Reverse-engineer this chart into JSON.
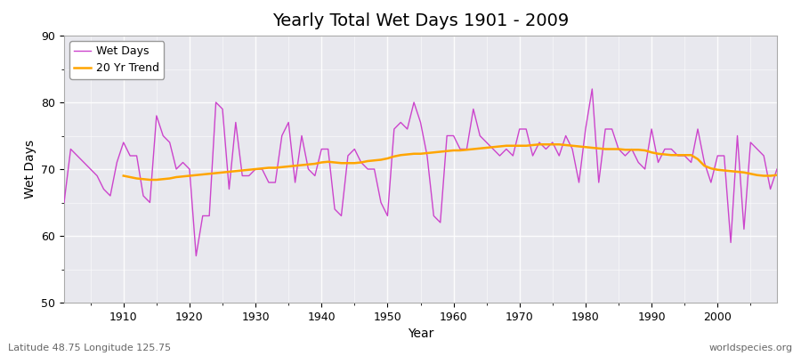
{
  "title": "Yearly Total Wet Days 1901 - 2009",
  "xlabel": "Year",
  "ylabel": "Wet Days",
  "subtitle_left": "Latitude 48.75 Longitude 125.75",
  "subtitle_right": "worldspecies.org",
  "legend_wet": "Wet Days",
  "legend_trend": "20 Yr Trend",
  "wet_color": "#CC44CC",
  "trend_color": "#FFA500",
  "bg_color": "#E8E8EE",
  "fig_bg": "#FFFFFF",
  "ylim": [
    50,
    90
  ],
  "xlim": [
    1901,
    2009
  ],
  "years": [
    1901,
    1902,
    1903,
    1904,
    1905,
    1906,
    1907,
    1908,
    1909,
    1910,
    1911,
    1912,
    1913,
    1914,
    1915,
    1916,
    1917,
    1918,
    1919,
    1920,
    1921,
    1922,
    1923,
    1924,
    1925,
    1926,
    1927,
    1928,
    1929,
    1930,
    1931,
    1932,
    1933,
    1934,
    1935,
    1936,
    1937,
    1938,
    1939,
    1940,
    1941,
    1942,
    1943,
    1944,
    1945,
    1946,
    1947,
    1948,
    1949,
    1950,
    1951,
    1952,
    1953,
    1954,
    1955,
    1956,
    1957,
    1958,
    1959,
    1960,
    1961,
    1962,
    1963,
    1964,
    1965,
    1966,
    1967,
    1968,
    1969,
    1970,
    1971,
    1972,
    1973,
    1974,
    1975,
    1976,
    1977,
    1978,
    1979,
    1980,
    1981,
    1982,
    1983,
    1984,
    1985,
    1986,
    1987,
    1988,
    1989,
    1990,
    1991,
    1992,
    1993,
    1994,
    1995,
    1996,
    1997,
    1998,
    1999,
    2000,
    2001,
    2002,
    2003,
    2004,
    2005,
    2006,
    2007,
    2008,
    2009
  ],
  "wet_days": [
    65,
    73,
    72,
    71,
    70,
    69,
    67,
    66,
    71,
    74,
    72,
    72,
    66,
    65,
    78,
    75,
    74,
    70,
    71,
    70,
    57,
    63,
    63,
    80,
    79,
    67,
    77,
    69,
    69,
    70,
    70,
    68,
    68,
    75,
    77,
    68,
    75,
    70,
    69,
    73,
    73,
    64,
    63,
    72,
    73,
    71,
    70,
    70,
    65,
    63,
    76,
    77,
    76,
    80,
    77,
    72,
    63,
    62,
    75,
    75,
    73,
    73,
    79,
    75,
    74,
    73,
    72,
    73,
    72,
    76,
    76,
    72,
    74,
    73,
    74,
    72,
    75,
    73,
    68,
    76,
    82,
    68,
    76,
    76,
    73,
    72,
    73,
    71,
    70,
    76,
    71,
    73,
    73,
    72,
    72,
    71,
    76,
    71,
    68,
    72,
    72,
    59,
    75,
    61,
    74,
    73,
    72,
    67,
    70
  ],
  "trend_start": 1910,
  "trend_values": [
    69.0,
    68.8,
    68.6,
    68.5,
    68.4,
    68.4,
    68.5,
    68.6,
    68.8,
    68.9,
    69.0,
    69.1,
    69.2,
    69.3,
    69.4,
    69.5,
    69.6,
    69.7,
    69.8,
    69.9,
    70.0,
    70.1,
    70.2,
    70.2,
    70.3,
    70.4,
    70.5,
    70.6,
    70.7,
    70.8,
    71.0,
    71.1,
    71.0,
    70.9,
    70.9,
    70.9,
    71.0,
    71.2,
    71.3,
    71.4,
    71.6,
    71.9,
    72.1,
    72.2,
    72.3,
    72.3,
    72.4,
    72.5,
    72.6,
    72.7,
    72.8,
    72.8,
    72.9,
    73.0,
    73.1,
    73.2,
    73.3,
    73.4,
    73.5,
    73.5,
    73.5,
    73.5,
    73.6,
    73.7,
    73.7,
    73.7,
    73.7,
    73.6,
    73.5,
    73.4,
    73.3,
    73.2,
    73.1,
    73.0,
    73.0,
    73.0,
    72.9,
    72.9,
    72.9,
    72.8,
    72.5,
    72.3,
    72.2,
    72.1,
    72.1,
    72.1,
    72.1,
    71.5,
    70.5,
    70.1,
    69.9,
    69.8,
    69.7,
    69.6,
    69.5,
    69.3,
    69.1,
    69.0,
    69.0,
    69.1
  ],
  "xticks": [
    1910,
    1920,
    1930,
    1940,
    1950,
    1960,
    1970,
    1980,
    1990,
    2000
  ],
  "yticks": [
    50,
    60,
    70,
    80,
    90
  ],
  "title_fontsize": 14,
  "label_fontsize": 10,
  "tick_fontsize": 9,
  "legend_fontsize": 9
}
